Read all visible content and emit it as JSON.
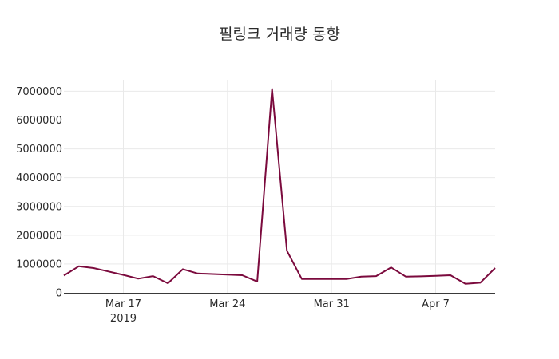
{
  "chart_data": {
    "type": "line",
    "title": "필링크 거래량 동향",
    "xlabel": "",
    "ylabel": "",
    "x_ticks": [
      {
        "date": "2019-03-17",
        "label": "Mar 17",
        "sublabel": "2019"
      },
      {
        "date": "2019-03-24",
        "label": "Mar 24",
        "sublabel": ""
      },
      {
        "date": "2019-03-31",
        "label": "Mar 31",
        "sublabel": ""
      },
      {
        "date": "2019-04-07",
        "label": "Apr 7",
        "sublabel": ""
      }
    ],
    "y_ticks": [
      "0",
      "1000000",
      "2000000",
      "3000000",
      "4000000",
      "5000000",
      "6000000",
      "7000000"
    ],
    "xlim": [
      "2019-03-13",
      "2019-04-11"
    ],
    "ylim": [
      0,
      7400000
    ],
    "grid": true,
    "legend": "none",
    "series": [
      {
        "color": "#7b0a3d",
        "x": [
          "2019-03-13",
          "2019-03-14",
          "2019-03-15",
          "2019-03-16",
          "2019-03-17",
          "2019-03-18",
          "2019-03-19",
          "2019-03-20",
          "2019-03-21",
          "2019-03-22",
          "2019-03-23",
          "2019-03-24",
          "2019-03-25",
          "2019-03-26",
          "2019-03-27",
          "2019-03-28",
          "2019-03-29",
          "2019-03-30",
          "2019-03-31",
          "2019-04-01",
          "2019-04-02",
          "2019-04-03",
          "2019-04-04",
          "2019-04-05",
          "2019-04-06",
          "2019-04-07",
          "2019-04-08",
          "2019-04-09",
          "2019-04-10",
          "2019-04-11"
        ],
        "y": [
          600000,
          920000,
          860000,
          740000,
          620000,
          490000,
          580000,
          330000,
          820000,
          670000,
          650000,
          630000,
          610000,
          390000,
          7080000,
          1460000,
          480000,
          480000,
          480000,
          480000,
          560000,
          580000,
          880000,
          560000,
          570000,
          590000,
          610000,
          310000,
          350000,
          860000
        ]
      }
    ]
  }
}
